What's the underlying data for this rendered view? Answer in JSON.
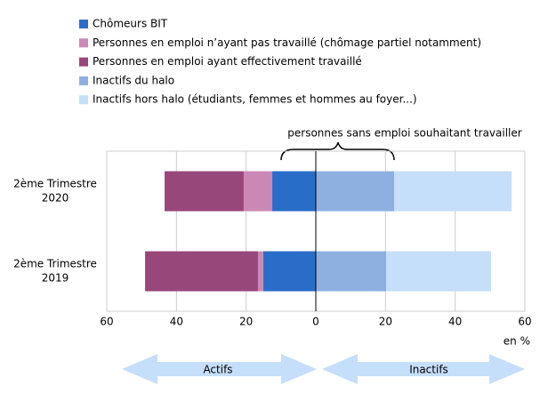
{
  "chart_data": {
    "type": "diverging-bar",
    "categories": [
      [
        "2ème Trimestre",
        "2020"
      ],
      [
        "2ème Trimestre",
        "2019"
      ]
    ],
    "series": [
      {
        "name": "Chômeurs BIT",
        "color": "#2a6dc9",
        "values": [
          -12.5,
          -15.1
        ]
      },
      {
        "name": "Personnes en emploi n’ayant pas travaillé (chômage partiel notamment)",
        "color": "#cc88b5",
        "values": [
          -8.2,
          -1.5
        ]
      },
      {
        "name": "Personnes en emploi ayant effectivement travaillé",
        "color": "#98477a",
        "values": [
          -22.7,
          -32.4
        ]
      },
      {
        "name": "Inactifs du halo",
        "color": "#8eb0e0",
        "values": [
          22.5,
          20.2
        ]
      },
      {
        "name": "Inactifs hors halo (étudiants, femmes et hommes au foyer...)",
        "color": "#c5defa",
        "values": [
          33.7,
          30.1
        ]
      }
    ],
    "xlim": [
      -60,
      60
    ],
    "xticks": [
      {
        "value": -60,
        "label": "60"
      },
      {
        "value": -40,
        "label": "40"
      },
      {
        "value": -20,
        "label": "20"
      },
      0,
      20,
      40,
      60
    ],
    "x_label": "en %",
    "grid": true,
    "annotation": "personnes sans emploi souhaitant travailler",
    "left_label": "Actifs",
    "right_label": "Inactifs"
  }
}
